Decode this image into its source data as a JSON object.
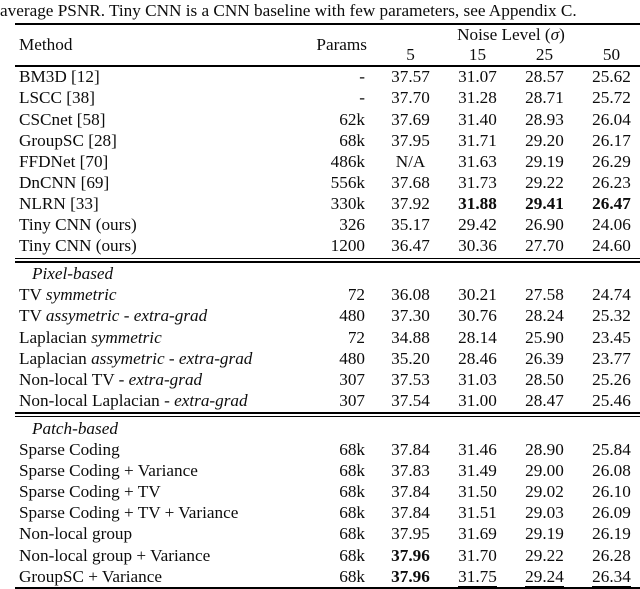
{
  "caption": "average PSNR. Tiny CNN is a CNN baseline with few parameters, see Appendix C.",
  "table": {
    "header": {
      "method": "Method",
      "params": "Params",
      "noise_prefix": "Noise Level (",
      "noise_sigma": "σ",
      "noise_suffix": ")",
      "noise_levels": [
        "5",
        "15",
        "25",
        "50"
      ]
    },
    "sections": [
      {
        "label": null,
        "rows": [
          {
            "method": [
              {
                "t": "BM3D [12]"
              }
            ],
            "params": "-",
            "vals": [
              {
                "t": "37.57"
              },
              {
                "t": "31.07"
              },
              {
                "t": "28.57"
              },
              {
                "t": "25.62"
              }
            ]
          },
          {
            "method": [
              {
                "t": "LSCC [38]"
              }
            ],
            "params": "-",
            "vals": [
              {
                "t": "37.70"
              },
              {
                "t": "31.28"
              },
              {
                "t": "28.71"
              },
              {
                "t": "25.72"
              }
            ]
          },
          {
            "method": [
              {
                "t": "CSCnet [58]"
              }
            ],
            "params": "62k",
            "vals": [
              {
                "t": "37.69"
              },
              {
                "t": "31.40"
              },
              {
                "t": "28.93"
              },
              {
                "t": "26.04"
              }
            ]
          },
          {
            "method": [
              {
                "t": "GroupSC [28]"
              }
            ],
            "params": "68k",
            "vals": [
              {
                "t": "37.95"
              },
              {
                "t": "31.71"
              },
              {
                "t": "29.20"
              },
              {
                "t": "26.17"
              }
            ]
          },
          {
            "method": [
              {
                "t": "FFDNet [70]"
              }
            ],
            "params": "486k",
            "vals": [
              {
                "t": "N/A"
              },
              {
                "t": "31.63"
              },
              {
                "t": "29.19"
              },
              {
                "t": "26.29"
              }
            ]
          },
          {
            "method": [
              {
                "t": "DnCNN [69]"
              }
            ],
            "params": "556k",
            "vals": [
              {
                "t": "37.68"
              },
              {
                "t": "31.73"
              },
              {
                "t": "29.22"
              },
              {
                "t": "26.23"
              }
            ]
          },
          {
            "method": [
              {
                "t": "NLRN [33]"
              }
            ],
            "params": "330k",
            "vals": [
              {
                "t": "37.92"
              },
              {
                "t": "31.88",
                "b": true
              },
              {
                "t": "29.41",
                "b": true
              },
              {
                "t": "26.47",
                "b": true
              }
            ]
          },
          {
            "method": [
              {
                "t": "Tiny CNN (ours)"
              }
            ],
            "params": "326",
            "vals": [
              {
                "t": "35.17"
              },
              {
                "t": "29.42"
              },
              {
                "t": "26.90"
              },
              {
                "t": "24.06"
              }
            ]
          },
          {
            "method": [
              {
                "t": "Tiny CNN (ours)"
              }
            ],
            "params": "1200",
            "vals": [
              {
                "t": "36.47"
              },
              {
                "t": "30.36"
              },
              {
                "t": "27.70"
              },
              {
                "t": "24.60"
              }
            ]
          }
        ]
      },
      {
        "label": "Pixel-based",
        "rows": [
          {
            "method": [
              {
                "t": "TV "
              },
              {
                "t": "symmetric",
                "i": true
              }
            ],
            "params": "72",
            "vals": [
              {
                "t": "36.08"
              },
              {
                "t": "30.21"
              },
              {
                "t": "27.58"
              },
              {
                "t": "24.74"
              }
            ]
          },
          {
            "method": [
              {
                "t": "TV "
              },
              {
                "t": "assymetric - extra-grad",
                "i": true
              }
            ],
            "params": "480",
            "vals": [
              {
                "t": "37.30"
              },
              {
                "t": "30.76"
              },
              {
                "t": "28.24"
              },
              {
                "t": "25.32"
              }
            ]
          },
          {
            "method": [
              {
                "t": "Laplacian "
              },
              {
                "t": "symmetric",
                "i": true
              }
            ],
            "params": "72",
            "vals": [
              {
                "t": "34.88"
              },
              {
                "t": "28.14"
              },
              {
                "t": "25.90"
              },
              {
                "t": "23.45"
              }
            ]
          },
          {
            "method": [
              {
                "t": "Laplacian "
              },
              {
                "t": "assymetric - extra-grad",
                "i": true
              }
            ],
            "params": "480",
            "vals": [
              {
                "t": "35.20"
              },
              {
                "t": "28.46"
              },
              {
                "t": "26.39"
              },
              {
                "t": "23.77"
              }
            ]
          },
          {
            "method": [
              {
                "t": "Non-local TV - "
              },
              {
                "t": "extra-grad",
                "i": true
              }
            ],
            "params": "307",
            "vals": [
              {
                "t": "37.53"
              },
              {
                "t": "31.03"
              },
              {
                "t": "28.50"
              },
              {
                "t": "25.26"
              }
            ]
          },
          {
            "method": [
              {
                "t": "Non-local Laplacian - "
              },
              {
                "t": "extra-grad",
                "i": true
              }
            ],
            "params": "307",
            "vals": [
              {
                "t": "37.54"
              },
              {
                "t": "31.00"
              },
              {
                "t": "28.47"
              },
              {
                "t": "25.46"
              }
            ]
          }
        ]
      },
      {
        "label": "Patch-based",
        "rows": [
          {
            "method": [
              {
                "t": "Sparse Coding"
              }
            ],
            "params": "68k",
            "vals": [
              {
                "t": "37.84"
              },
              {
                "t": "31.46"
              },
              {
                "t": "28.90"
              },
              {
                "t": "25.84"
              }
            ]
          },
          {
            "method": [
              {
                "t": "Sparse Coding + Variance"
              }
            ],
            "params": "68k",
            "vals": [
              {
                "t": "37.83"
              },
              {
                "t": "31.49"
              },
              {
                "t": "29.00"
              },
              {
                "t": "26.08"
              }
            ]
          },
          {
            "method": [
              {
                "t": "Sparse Coding + TV"
              }
            ],
            "params": "68k",
            "vals": [
              {
                "t": "37.84"
              },
              {
                "t": "31.50"
              },
              {
                "t": "29.02"
              },
              {
                "t": "26.10"
              }
            ]
          },
          {
            "method": [
              {
                "t": "Sparse Coding + TV + Variance"
              }
            ],
            "params": "68k",
            "vals": [
              {
                "t": "37.84"
              },
              {
                "t": "31.51"
              },
              {
                "t": "29.03"
              },
              {
                "t": "26.09"
              }
            ]
          },
          {
            "method": [
              {
                "t": "Non-local group"
              }
            ],
            "params": "68k",
            "vals": [
              {
                "t": "37.95"
              },
              {
                "t": "31.69"
              },
              {
                "t": "29.19"
              },
              {
                "t": "26.19"
              }
            ]
          },
          {
            "method": [
              {
                "t": "Non-local group + Variance"
              }
            ],
            "params": "68k",
            "vals": [
              {
                "t": "37.96",
                "b": true
              },
              {
                "t": "31.70"
              },
              {
                "t": "29.22"
              },
              {
                "t": "26.28"
              }
            ]
          },
          {
            "method": [
              {
                "t": "GroupSC + Variance"
              }
            ],
            "params": "68k",
            "vals": [
              {
                "t": "37.96",
                "b": true
              },
              {
                "t": "31.75",
                "u": true
              },
              {
                "t": "29.24",
                "u": true
              },
              {
                "t": "26.34",
                "u": true
              }
            ]
          }
        ]
      }
    ]
  }
}
